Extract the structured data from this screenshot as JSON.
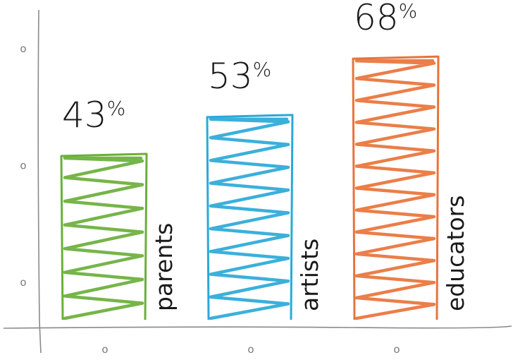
{
  "chart_data": {
    "type": "bar",
    "categories": [
      "parents",
      "artists",
      "educators"
    ],
    "values": [
      43,
      53,
      68
    ],
    "value_labels": [
      "43",
      "53",
      "68"
    ],
    "value_suffix": "%",
    "ylim": [
      0,
      80
    ],
    "y_tick_values": [
      10,
      40,
      70
    ],
    "y_tick_labels": [
      "o",
      "o",
      "o"
    ],
    "x_tick_labels": [
      "o",
      "o",
      "o"
    ],
    "colors": [
      "#6aaf3a",
      "#2aa9d8",
      "#e9733a"
    ],
    "grid": false,
    "legend": "none",
    "style": "hand-drawn scribble fill"
  }
}
